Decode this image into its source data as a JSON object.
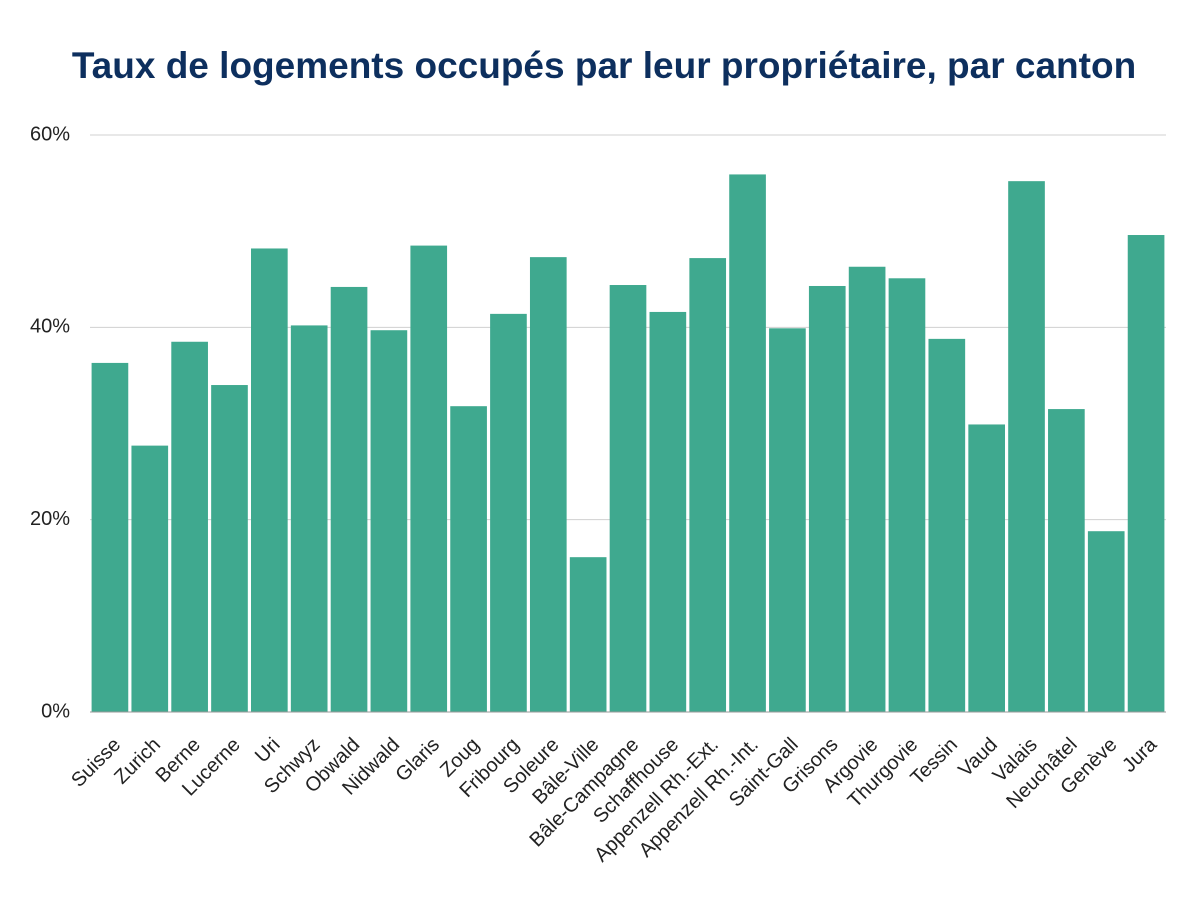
{
  "chart_data": {
    "type": "bar",
    "title": "Taux de logements occupés par leur propriétaire, par canton",
    "categories": [
      "Suisse",
      "Zurich",
      "Berne",
      "Lucerne",
      "Uri",
      "Schwyz",
      "Obwald",
      "Nidwald",
      "Glaris",
      "Zoug",
      "Fribourg",
      "Soleure",
      "Bâle-Ville",
      "Bâle-Campagne",
      "Schaffhouse",
      "Appenzell Rh.-Ext.",
      "Appenzell Rh.-Int.",
      "Saint-Gall",
      "Grisons",
      "Argovie",
      "Thurgovie",
      "Tessin",
      "Vaud",
      "Valais",
      "Neuchâtel",
      "Genève",
      "Jura"
    ],
    "values": [
      36.3,
      27.7,
      38.5,
      34.0,
      48.2,
      40.2,
      44.2,
      39.7,
      48.5,
      31.8,
      41.4,
      47.3,
      16.1,
      44.4,
      41.6,
      47.2,
      55.9,
      39.9,
      44.3,
      46.3,
      45.1,
      38.8,
      29.9,
      55.2,
      31.5,
      18.8,
      49.6
    ],
    "color": "#3fa98f",
    "ylim": [
      0,
      60
    ],
    "yticks": [
      {
        "value": 0,
        "label": "0%"
      },
      {
        "value": 20,
        "label": "20%"
      },
      {
        "value": 40,
        "label": "40%"
      },
      {
        "value": 60,
        "label": "60%"
      }
    ],
    "grid": true
  }
}
